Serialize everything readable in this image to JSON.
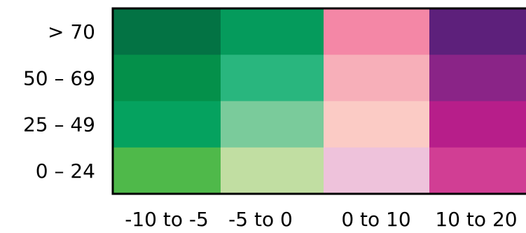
{
  "chart_data": {
    "type": "heatmap",
    "title": "",
    "xlabel": "",
    "ylabel": "",
    "x_categories": [
      "-10 to -5",
      "-5 to 0",
      "0 to 10",
      "10 to 20"
    ],
    "y_categories": [
      "> 70",
      "50 – 69",
      "25 – 49",
      "0 – 24"
    ],
    "cell_colors": [
      [
        "#037344",
        "#059b5c",
        "#f487a6",
        "#5d207b"
      ],
      [
        "#04904a",
        "#29b67e",
        "#f7afb9",
        "#8a2487"
      ],
      [
        "#05a25f",
        "#7acb9b",
        "#fbcbc5",
        "#b71e8a"
      ],
      [
        "#4fb94a",
        "#c1dea2",
        "#eec2db",
        "#d13e94"
      ]
    ],
    "grid": false,
    "legend": "none",
    "border_color": "#000000"
  }
}
